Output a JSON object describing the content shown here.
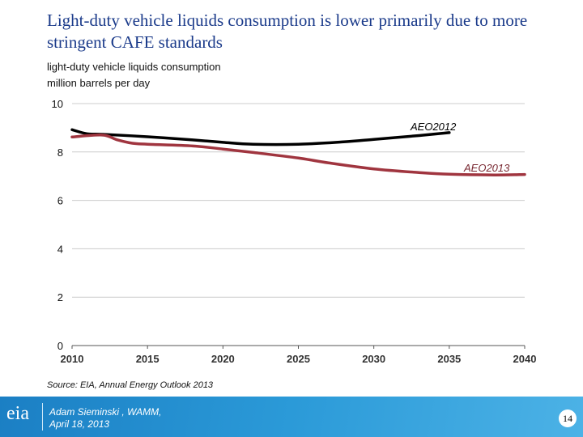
{
  "title": "Light-duty vehicle liquids consumption is lower primarily due to more stringent CAFE standards",
  "source": "Source:  EIA, Annual Energy Outlook 2013",
  "footer": {
    "logo": "eia",
    "author": "Adam Sieminski , WAMM,",
    "date": "April 18, 2013",
    "page": "14",
    "color": "#2b9ad8"
  },
  "chart_data": {
    "type": "line",
    "title": "light-duty vehicle liquids consumption",
    "ylabel": "million barrels per day",
    "xlim": [
      2010,
      2040
    ],
    "ylim": [
      0,
      10
    ],
    "xticks": [
      "2010",
      "2015",
      "2020",
      "2025",
      "2030",
      "2035",
      "2040"
    ],
    "yticks": [
      "0",
      "2",
      "4",
      "6",
      "8",
      "10"
    ],
    "grid": true,
    "series": [
      {
        "name": "AEO2012",
        "color": "#000000",
        "x": [
          2010,
          2011,
          2012,
          2015,
          2018,
          2020,
          2022,
          2025,
          2028,
          2030,
          2033,
          2035
        ],
        "y": [
          8.92,
          8.75,
          8.73,
          8.63,
          8.5,
          8.4,
          8.32,
          8.32,
          8.42,
          8.52,
          8.68,
          8.8
        ]
      },
      {
        "name": "AEO2013",
        "color": "#a0353f",
        "x": [
          2010,
          2012,
          2013,
          2014,
          2015,
          2018,
          2020,
          2022,
          2025,
          2027,
          2030,
          2033,
          2035,
          2038,
          2040
        ],
        "y": [
          8.62,
          8.7,
          8.5,
          8.36,
          8.32,
          8.25,
          8.12,
          7.98,
          7.75,
          7.55,
          7.3,
          7.15,
          7.08,
          7.05,
          7.07
        ]
      }
    ]
  }
}
